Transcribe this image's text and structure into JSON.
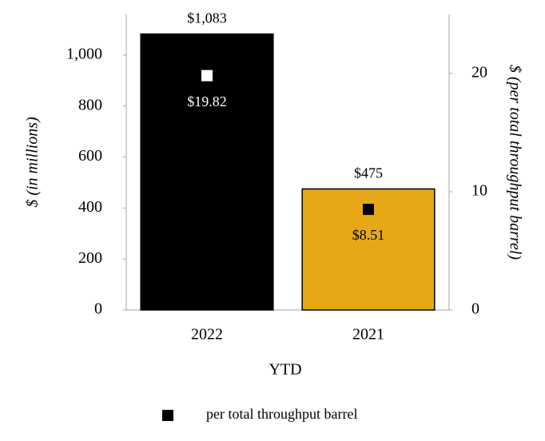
{
  "chart_data": {
    "type": "bar",
    "xlabel": "YTD",
    "ylabel": "$ (in millions)",
    "y2label": "$ (per total throughput barrel)",
    "categories": [
      "2022",
      "2021"
    ],
    "series": [
      {
        "values": [
          1083,
          475
        ],
        "value_labels": [
          "$1,083",
          "$475"
        ],
        "colors": [
          "#000000",
          "#e6a817"
        ]
      },
      {
        "name": "per total throughput barrel",
        "axis": "y2",
        "color": "#000000",
        "values": [
          19.82,
          8.51
        ],
        "value_labels": [
          "$19.82",
          "$8.51"
        ],
        "point_colors": [
          "#ffffff",
          "#000000"
        ],
        "label_colors": [
          "#ffffff",
          "#000000"
        ]
      }
    ],
    "ylim": [
      0,
      1160
    ],
    "yticks": [
      0,
      200,
      400,
      600,
      800,
      {
        "value": 1000,
        "label": "1,000"
      }
    ],
    "y2lim": [
      0,
      25
    ],
    "y2ticks": [
      0,
      10,
      20
    ],
    "legend": "bottom"
  }
}
